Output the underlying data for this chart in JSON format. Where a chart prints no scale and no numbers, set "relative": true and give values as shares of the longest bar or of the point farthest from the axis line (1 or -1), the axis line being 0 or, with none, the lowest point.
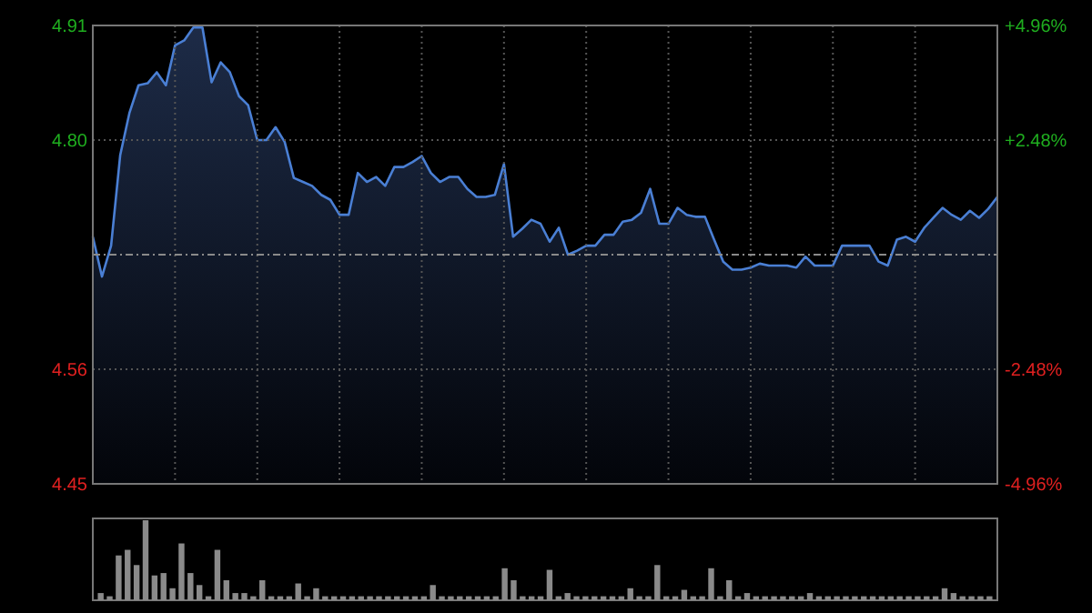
{
  "chart_data": [
    {
      "type": "area",
      "categories": [
        null,
        null,
        null,
        null,
        null,
        null,
        null,
        null,
        null,
        null,
        null,
        null,
        null,
        null,
        null,
        null,
        null,
        null,
        null,
        null,
        null,
        null,
        null,
        null,
        null,
        null,
        null,
        null,
        null,
        null,
        null,
        null,
        null,
        null,
        null,
        null,
        null,
        null,
        null,
        null,
        null,
        null,
        null,
        null,
        null,
        null,
        null,
        null,
        null,
        null,
        null,
        null,
        null,
        null,
        null,
        null,
        null,
        null,
        null,
        null,
        null,
        null,
        null,
        null,
        null,
        null,
        null,
        null,
        null,
        null,
        null,
        null,
        null,
        null,
        null,
        null,
        null,
        null,
        null,
        null,
        null,
        null,
        null,
        null,
        null,
        null,
        null,
        null,
        null,
        null,
        null,
        null,
        null,
        null,
        null,
        null,
        null,
        null,
        null,
        null
      ],
      "series": [
        {
          "color": "#4a7fd4",
          "values": [
            4.698,
            4.658,
            4.689,
            4.78,
            4.822,
            4.85,
            4.852,
            4.863,
            4.85,
            4.89,
            4.895,
            4.908,
            4.908,
            4.853,
            4.873,
            4.863,
            4.839,
            4.83,
            4.795,
            4.795,
            4.808,
            4.793,
            4.757,
            4.753,
            4.749,
            4.74,
            4.735,
            4.72,
            4.72,
            4.762,
            4.753,
            4.758,
            4.749,
            4.768,
            4.768,
            4.773,
            4.779,
            4.762,
            4.753,
            4.758,
            4.758,
            4.746,
            4.738,
            4.738,
            4.74,
            4.771,
            4.698,
            4.706,
            4.715,
            4.711,
            4.693,
            4.707,
            4.68,
            4.684,
            4.689,
            4.689,
            4.7,
            4.7,
            4.713,
            4.715,
            4.722,
            4.746,
            4.711,
            4.711,
            4.727,
            4.72,
            4.718,
            4.718,
            4.695,
            4.673,
            4.665,
            4.665,
            4.667,
            4.671,
            4.669,
            4.669,
            4.669,
            4.667,
            4.678,
            4.669,
            4.669,
            4.669,
            4.689,
            4.689,
            4.689,
            4.689,
            4.673,
            4.669,
            4.695,
            4.698,
            4.693,
            4.707,
            4.717,
            4.727,
            4.72,
            4.715,
            4.724,
            4.717,
            4.726,
            4.738
          ]
        }
      ],
      "ylim": [
        4.45,
        4.91
      ],
      "yticks": [
        4.91,
        {
          "value": 4.795,
          "label": "4.80"
        },
        {
          "value": 4.565,
          "label": "4.56"
        },
        4.45
      ],
      "ref_lines": [
        {
          "axis": "y",
          "value": 4.68,
          "color": "#8a8a8a",
          "line_style": "dashed"
        }
      ],
      "y2lim": [
        -4.96,
        4.96
      ],
      "y2ticks": [
        {
          "value": 4.96,
          "label": "+4.96%"
        },
        {
          "value": 2.48,
          "label": "+2.48%"
        },
        {
          "value": -2.48,
          "label": "-2.48%"
        },
        {
          "value": -4.96,
          "label": "-4.96%"
        }
      ],
      "grid": true
    },
    {
      "type": "bar",
      "relative": true,
      "color": "#8a8a8a",
      "categories": [
        null,
        null,
        null,
        null,
        null,
        null,
        null,
        null,
        null,
        null,
        null,
        null,
        null,
        null,
        null,
        null,
        null,
        null,
        null,
        null,
        null,
        null,
        null,
        null,
        null,
        null,
        null,
        null,
        null,
        null,
        null,
        null,
        null,
        null,
        null,
        null,
        null,
        null,
        null,
        null,
        null,
        null,
        null,
        null,
        null,
        null,
        null,
        null,
        null,
        null,
        null,
        null,
        null,
        null,
        null,
        null,
        null,
        null,
        null,
        null,
        null,
        null,
        null,
        null,
        null,
        null,
        null,
        null,
        null,
        null,
        null,
        null,
        null,
        null,
        null,
        null,
        null,
        null,
        null,
        null,
        null,
        null,
        null,
        null,
        null,
        null,
        null,
        null,
        null,
        null,
        null,
        null,
        null,
        null,
        null,
        null,
        null,
        null,
        null,
        null
      ],
      "values": [
        0.09,
        0.05,
        0.56,
        0.63,
        0.44,
        1,
        0.31,
        0.34,
        0.15,
        0.71,
        0.34,
        0.19,
        0.05,
        0.63,
        0.25,
        0.09,
        0.09,
        0.05,
        0.25,
        0.05,
        0.05,
        0.05,
        0.21,
        0.05,
        0.15,
        0.05,
        0.05,
        0.05,
        0.05,
        0.05,
        0.05,
        0.05,
        0.05,
        0.05,
        0.05,
        0.05,
        0.05,
        0.19,
        0.05,
        0.05,
        0.05,
        0.05,
        0.05,
        0.05,
        0.05,
        0.4,
        0.25,
        0.05,
        0.05,
        0.05,
        0.38,
        0.05,
        0.09,
        0.05,
        0.05,
        0.05,
        0.05,
        0.05,
        0.05,
        0.15,
        0.05,
        0.05,
        0.44,
        0.05,
        0.05,
        0.13,
        0.05,
        0.05,
        0.4,
        0.05,
        0.25,
        0.05,
        0.09,
        0.05,
        0.05,
        0.05,
        0.05,
        0.05,
        0.05,
        0.09,
        0.05,
        0.05,
        0.05,
        0.05,
        0.05,
        0.05,
        0.05,
        0.05,
        0.05,
        0.05,
        0.05,
        0.05,
        0.05,
        0.05,
        0.15,
        0.09,
        0.05,
        0.05,
        0.05,
        0.05
      ]
    }
  ]
}
